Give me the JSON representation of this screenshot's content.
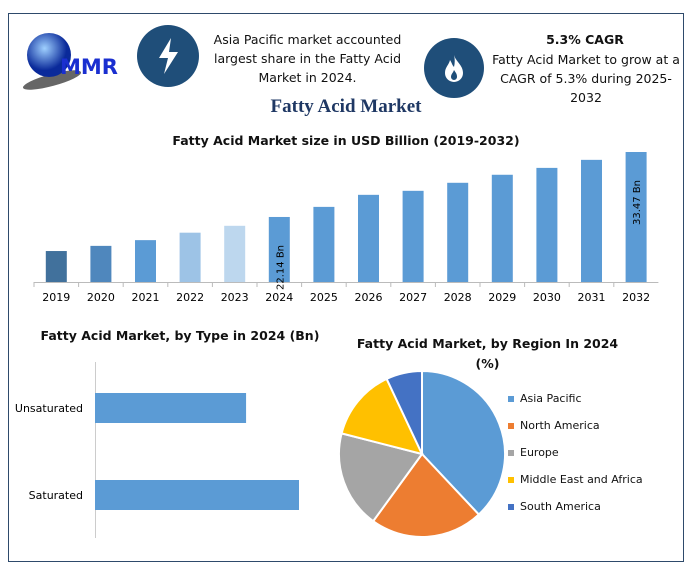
{
  "header": {
    "logo_text": "MMR",
    "highlight_icon": "lightning-icon",
    "highlight_text": "Asia Pacific market accounted largest share in the Fatty Acid Market in 2024.",
    "cagr_icon": "flame-icon",
    "cagr_title": "5.3% CAGR",
    "cagr_text": "Fatty Acid Market to grow at a CAGR of 5.3% during 2025-2032",
    "main_title": "Fatty Acid Market"
  },
  "colors": {
    "accent": "#1f4e79",
    "bar": "#5b9bd5",
    "frame": "#2e4a6b"
  },
  "chart_data": [
    {
      "type": "bar",
      "title": "Fatty Acid Market size in USD Billion (2019-2032)",
      "categories": [
        "2019",
        "2020",
        "2021",
        "2022",
        "2023",
        "2024",
        "2025",
        "2026",
        "2027",
        "2028",
        "2029",
        "2030",
        "2031",
        "2032"
      ],
      "values": [
        16.2,
        17.1,
        18.1,
        19.4,
        20.6,
        22.14,
        23.9,
        26.0,
        26.7,
        28.1,
        29.5,
        30.7,
        32.1,
        33.47
      ],
      "colors": [
        "#41719c",
        "#4f87bd",
        "#5b9bd5",
        "#9dc3e6",
        "#bdd7ee",
        "#5b9bd5",
        "#5b9bd5",
        "#5b9bd5",
        "#5b9bd5",
        "#5b9bd5",
        "#5b9bd5",
        "#5b9bd5",
        "#5b9bd5",
        "#5b9bd5"
      ],
      "data_labels": {
        "2024": "22.14 Bn",
        "2032": "33.47 Bn"
      },
      "ylim": [
        10.8,
        34
      ],
      "grid": false
    },
    {
      "type": "bar",
      "orientation": "horizontal",
      "title": "Fatty Acid Market, by Type in 2024 (Bn)",
      "categories": [
        "Unsaturated",
        "Saturated"
      ],
      "values": [
        9.42,
        12.72
      ],
      "color": "#5b9bd5"
    },
    {
      "type": "pie",
      "title": "Fatty Acid Market, by Region In 2024",
      "subtitle": "(%)",
      "legend_position": "right",
      "slices": [
        {
          "label": "Asia Pacific",
          "value": 38,
          "color": "#5b9bd5"
        },
        {
          "label": "North America",
          "value": 22,
          "color": "#ed7d31"
        },
        {
          "label": "Europe",
          "value": 19,
          "color": "#a5a5a5"
        },
        {
          "label": "Middle East and Africa",
          "value": 14,
          "color": "#ffc000"
        },
        {
          "label": "South America",
          "value": 7,
          "color": "#4472c4"
        }
      ]
    }
  ]
}
